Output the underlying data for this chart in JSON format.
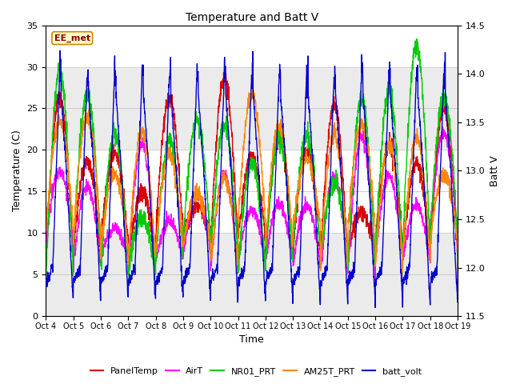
{
  "title": "Temperature and Batt V",
  "xlabel": "Time",
  "ylabel_left": "Temperature (C)",
  "ylabel_right": "Batt V",
  "ylim_left": [
    0,
    35
  ],
  "ylim_right": [
    11.5,
    14.5
  ],
  "xlim": [
    0,
    15
  ],
  "x_tick_labels": [
    "Oct 4",
    "Oct 5",
    "Oct 6",
    "Oct 7",
    "Oct 8",
    "Oct 9",
    "Oct 10",
    "Oct 11",
    "Oct 12",
    "Oct 13",
    "Oct 14",
    "Oct 15",
    "Oct 16",
    "Oct 17",
    "Oct 18",
    "Oct 19"
  ],
  "site_label": "EE_met",
  "legend_items": [
    {
      "label": "PanelTemp",
      "color": "#dd0000"
    },
    {
      "label": "AirT",
      "color": "#ff00ff"
    },
    {
      "label": "NR01_PRT",
      "color": "#00cc00"
    },
    {
      "label": "AM25T_PRT",
      "color": "#ff8800"
    },
    {
      "label": "batt_volt",
      "color": "#0000cc"
    }
  ],
  "background_color": "#ffffff",
  "plot_bg_color": "#ebebeb",
  "n_days": 15,
  "pts_per_day": 144,
  "gray_band_color": "#d8d8d8"
}
